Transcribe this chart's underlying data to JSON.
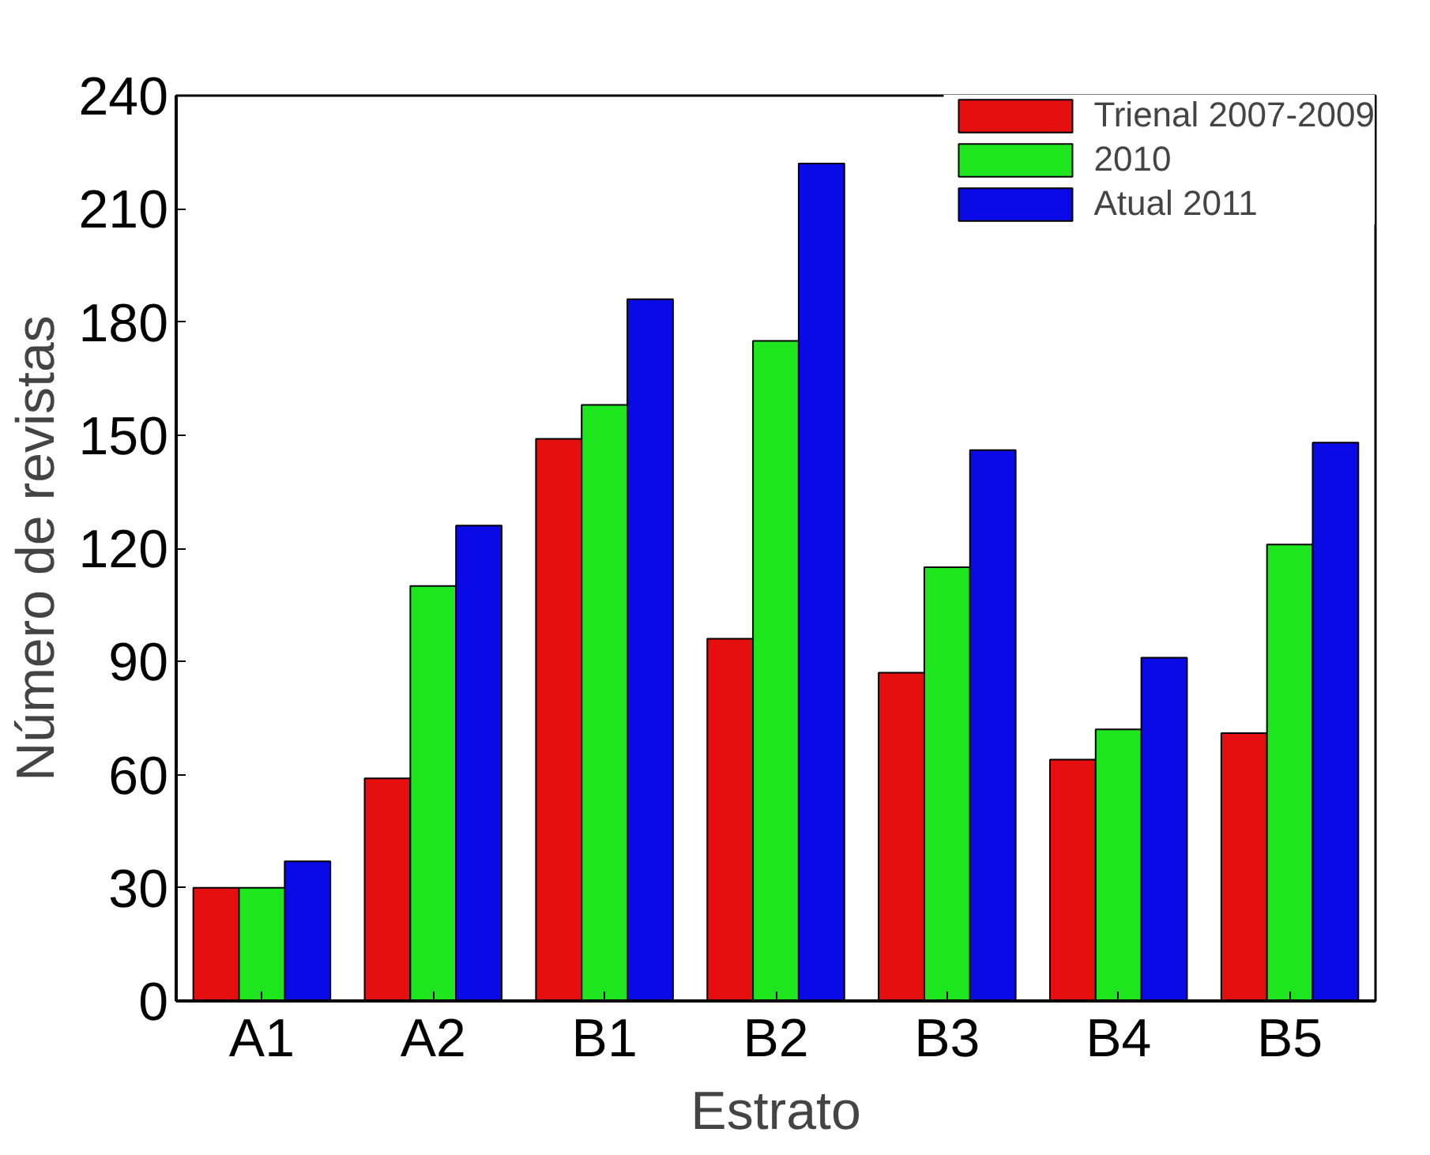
{
  "chart_data": {
    "type": "bar",
    "xlabel": "Estrato",
    "ylabel": "Número de revistas",
    "categories": [
      "A1",
      "A2",
      "B1",
      "B2",
      "B3",
      "B4",
      "B5"
    ],
    "series": [
      {
        "name": "Trienal 2007-2009",
        "color": "#e50f0f",
        "values": [
          30,
          59,
          149,
          96,
          87,
          64,
          71
        ]
      },
      {
        "name": "2010",
        "color": "#1ee61e",
        "values": [
          30,
          110,
          158,
          175,
          115,
          72,
          121
        ]
      },
      {
        "name": "Atual 2011",
        "color": "#0a0ae6",
        "values": [
          37,
          126,
          186,
          222,
          146,
          91,
          148
        ]
      }
    ],
    "ylim": [
      0,
      240
    ],
    "yticks": [
      0,
      30,
      60,
      90,
      120,
      150,
      180,
      210,
      240
    ],
    "grid": false,
    "legend": "top right"
  }
}
